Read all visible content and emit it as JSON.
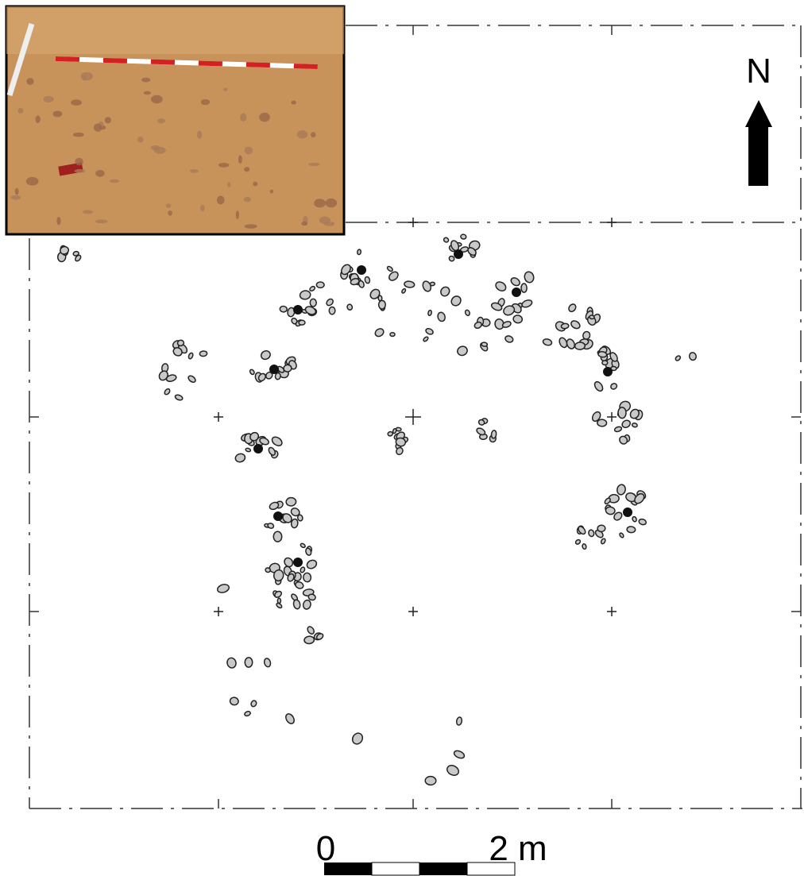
{
  "north_arrow": {
    "label": "N"
  },
  "scale_bar": {
    "start_label": "0",
    "end_label": "2 m"
  }
}
